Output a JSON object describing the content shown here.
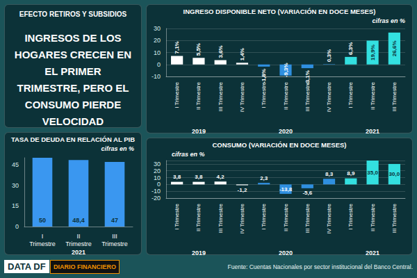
{
  "header": {
    "kicker": "EFECTO RETIROS Y SUBSIDIOS",
    "headline": "INGRESOS DE LOS HOGARES CRECEN EN EL PRIMER TRIMESTRE, PERO EL CONSUMO PIERDE VELOCIDAD"
  },
  "chart_data": [
    {
      "type": "bar",
      "title": "INGRESO DISPONIBLE NETO (VARIACIÓN EN DOCE MESES)",
      "subtitle": "cifras en %",
      "categories": [
        "I Trimestre",
        "II Trimestre",
        "III Trimestre",
        "IV Trimestre",
        "I Trimestre",
        "II Trimestre",
        "III Trimestre",
        "IV Trimestre",
        "I Trimestre",
        "II Trimestre",
        "III Trimestre"
      ],
      "category_groups": [
        "2019",
        "2019",
        "2019",
        "2019",
        "2020",
        "2020",
        "2020",
        "2020",
        "2021",
        "2021",
        "2021"
      ],
      "values": [
        7.1,
        5.5,
        3.6,
        1.4,
        -1.8,
        -9.3,
        -3.1,
        0.3,
        6.3,
        19.9,
        26.6
      ],
      "value_labels": [
        "7,1%",
        "5,5%",
        "3,6%",
        "1,4%",
        "-1,8%",
        "-9,3%",
        "-3,1%",
        "0,3%",
        "6,3%",
        "19,9%",
        "26,6%"
      ],
      "colors": [
        "#ffffff",
        "#ffffff",
        "#ffffff",
        "#ffffff",
        "#2f8fe0",
        "#2f8fe0",
        "#2f8fe0",
        "#2f8fe0",
        "#33e0e0",
        "#33e0e0",
        "#33e0e0"
      ],
      "ylim": [
        -10,
        30
      ],
      "yticks": [
        -10,
        0,
        10,
        20,
        30
      ],
      "grid": true,
      "data_labels": true
    },
    {
      "type": "bar",
      "title": "CONSUMO (VARIACIÓN EN DOCE MESES)",
      "subtitle": "cifras en %",
      "categories": [
        "I Trimestre",
        "II Trimestre",
        "III Trimestre",
        "IV Trimestre",
        "I Trimestre",
        "II Trimestre",
        "III Trimestre",
        "IV Trimestre",
        "I Trimestre",
        "II Trimestre",
        "III Trimestre"
      ],
      "category_groups": [
        "2019",
        "2019",
        "2019",
        "2019",
        "2020",
        "2020",
        "2020",
        "2020",
        "2021",
        "2021",
        "2021"
      ],
      "values": [
        3.8,
        3.8,
        4.2,
        -1.2,
        2.3,
        -13.8,
        -5.6,
        8.3,
        8.9,
        35.0,
        30.0
      ],
      "value_labels": [
        "3,8",
        "3,8",
        "4,2",
        "-1,2",
        "2,3",
        "-13,8",
        "-5,6",
        "8,3",
        "8,9",
        "35,0",
        "30,0"
      ],
      "colors": [
        "#ffffff",
        "#ffffff",
        "#ffffff",
        "#ffffff",
        "#2f8fe0",
        "#2f8fe0",
        "#2f8fe0",
        "#2f8fe0",
        "#33e0e0",
        "#33e0e0",
        "#33e0e0"
      ],
      "ylim": [
        -20,
        35
      ],
      "yticks": [
        -20,
        -10,
        0,
        10,
        20,
        30
      ],
      "grid": true,
      "data_labels": true
    },
    {
      "type": "bar",
      "title": "TASA DE DEUDA EN RELACIÓN AL PIB",
      "subtitle": "cifras en %",
      "categories": [
        "I Trimestre",
        "II Trimestre",
        "III Trimestre"
      ],
      "category_groups": [
        "2021",
        "2021",
        "2021"
      ],
      "values": [
        50,
        48.4,
        47
      ],
      "value_labels": [
        "50",
        "48,4",
        "47"
      ],
      "color": "#3a97f0",
      "ylim": [
        0,
        50
      ],
      "yticks": [
        0,
        15,
        30,
        45
      ],
      "grid": false,
      "data_labels": true
    }
  ],
  "footer": {
    "brand": "DATA DF",
    "publisher": "DIARIO FINANCIERO",
    "source": "Fuente: Cuentas Nacionales por sector institucional del Banco Central."
  }
}
